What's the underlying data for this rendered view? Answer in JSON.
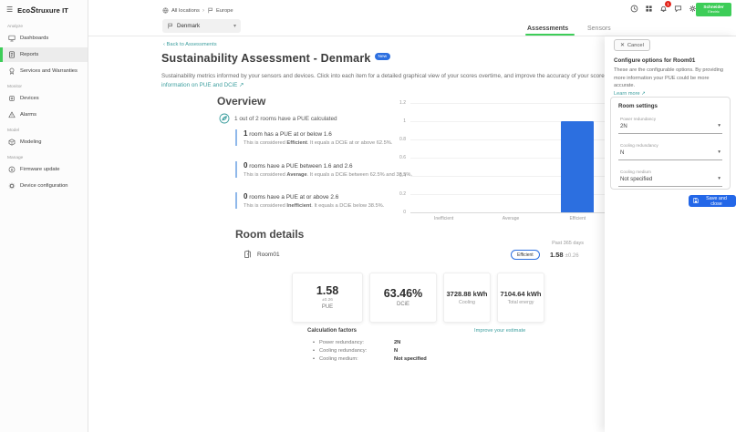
{
  "colors": {
    "brand_green": "#3dcd58",
    "accent_blue": "#2c6fe0",
    "link_teal": "#3d9f9f",
    "alert_red": "#e2231a",
    "bar_blue": "#2c6fe0"
  },
  "brand": {
    "logo_prefix": "Eco",
    "logo_s": "S",
    "logo_rest": "truxure IT",
    "schneider_line1": "Schneider",
    "schneider_line2": "Electric"
  },
  "sidebar": {
    "sections": [
      {
        "label": "Analyze",
        "items": [
          {
            "label": "Dashboards"
          },
          {
            "label": "Reports"
          },
          {
            "label": "Services and Warranties"
          }
        ]
      },
      {
        "label": "Monitor",
        "items": [
          {
            "label": "Devices"
          },
          {
            "label": "Alarms"
          }
        ]
      },
      {
        "label": "Model",
        "items": [
          {
            "label": "Modeling"
          }
        ]
      },
      {
        "label": "Manage",
        "items": [
          {
            "label": "Firmware update"
          },
          {
            "label": "Device configuration"
          }
        ]
      }
    ]
  },
  "topbar": {
    "breadcrumb": {
      "root": "All locations",
      "current": "Europe"
    },
    "location_selector": {
      "value": "Denmark"
    },
    "notifications": {
      "count": "1"
    }
  },
  "tabs": [
    {
      "label": "Assessments"
    },
    {
      "label": "Sensors"
    }
  ],
  "page": {
    "back": "Back to Assessments",
    "title": "Sustainability Assessment - Denmark",
    "new_badge": "New",
    "description": "Sustainability metrics informed by your sensors and devices. Click into each item for a detailed graphical view of your scores overtime, and improve the accuracy of your scores by editing and providing more information.",
    "more_info": "More information on PUE and DCiE"
  },
  "overview": {
    "heading": "Overview",
    "summary": "1 out of 2 rooms have a PUE calculated",
    "blocks": [
      {
        "count": "1",
        "headline": " room has a PUE at or below 1.6",
        "note_pre": "This is considered ",
        "note_bold": "Efficient",
        "note_post": ". It equals a DCiE at or above 62.5%."
      },
      {
        "count": "0",
        "headline": " rooms have a PUE between 1.6 and 2.6",
        "note_pre": "This is considered ",
        "note_bold": "Average",
        "note_post": ". It equals a DCiE between 62.5% and 38.5%."
      },
      {
        "count": "0",
        "headline": " rooms have a PUE at or above 2.6",
        "note_pre": "This is considered ",
        "note_bold": "Inefficient",
        "note_post": ". It equals a DCiE below 38.5%."
      }
    ]
  },
  "chart_data": {
    "type": "bar",
    "categories": [
      "Inefficient",
      "Average",
      "Efficient"
    ],
    "values": [
      0,
      0,
      1
    ],
    "ylim": [
      0,
      1.2
    ],
    "yticks": [
      0,
      0.2,
      0.4,
      0.6,
      0.8,
      1,
      1.2
    ],
    "bar_color": "#2c6fe0",
    "grid": true,
    "legend": false,
    "title": "",
    "xlabel": "",
    "ylabel": ""
  },
  "room_details": {
    "heading": "Room details",
    "period": "Past 365 days",
    "room_name": "Room01",
    "status_badge": "Efficient",
    "pue_value": "1.58",
    "pue_tolerance": "±0.26",
    "cards": {
      "pue": {
        "value": "1.58",
        "sub": "±0.26",
        "label": "PUE"
      },
      "dcie": {
        "value": "63.46%",
        "label": "DCiE"
      },
      "cooling": {
        "value": "3728.88 kWh",
        "label": "Cooling"
      },
      "total": {
        "value": "7104.64 kWh",
        "label": "Total energy"
      }
    },
    "factors": {
      "heading": "Calculation factors",
      "rows": [
        {
          "label": "Power redundancy:",
          "value": "2N"
        },
        {
          "label": "Cooling redundancy:",
          "value": "N"
        },
        {
          "label": "Cooling medium:",
          "value": "Not specified"
        }
      ],
      "improve_link": "Improve your estimate"
    }
  },
  "panel": {
    "cancel": "Cancel",
    "title": "Configure options for Room01",
    "description": "These are the configurable options. By providing more information your PUE could be more accurate.",
    "learn_more": "Learn more",
    "settings": {
      "heading": "Room settings",
      "fields": [
        {
          "label": "Power redundancy",
          "value": "2N"
        },
        {
          "label": "Cooling redundancy",
          "value": "N"
        },
        {
          "label": "Cooling medium",
          "value": "Not specified"
        }
      ]
    },
    "save": "Save and close"
  }
}
